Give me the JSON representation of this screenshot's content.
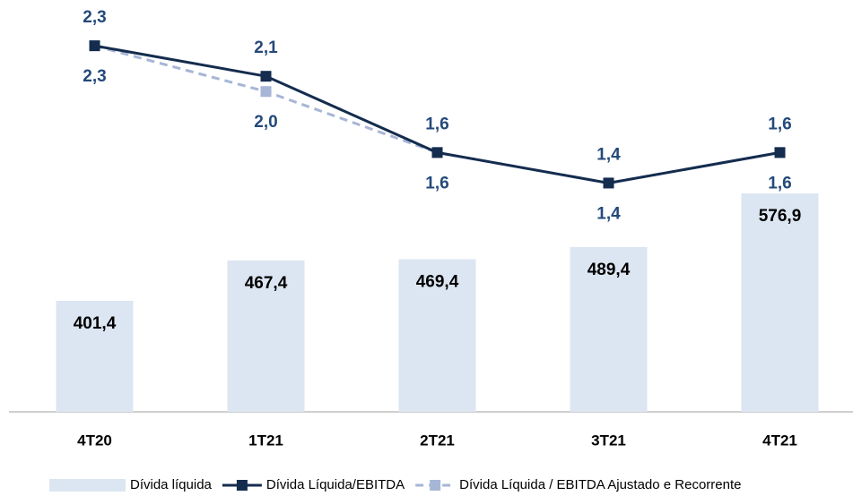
{
  "chart_data": {
    "type": "bar_line",
    "categories": [
      "4T20",
      "1T21",
      "2T21",
      "3T21",
      "4T21"
    ],
    "ylim": [
      220,
      893
    ],
    "y2lim": [
      -0.1,
      2.6
    ],
    "series": [
      {
        "name": "Dívida líquida",
        "type": "bar",
        "color": "#dce6f2",
        "values": [
          401.4,
          467.4,
          469.4,
          489.4,
          576.9
        ],
        "value_labels": [
          "401,4",
          "467,4",
          "469,4",
          "489,4",
          "576,9"
        ]
      },
      {
        "name": "Dívida Líquida/EBITDA",
        "type": "line",
        "axis": "y2",
        "color": "#142c4e",
        "dashed": false,
        "values": [
          2.3,
          2.1,
          1.6,
          1.4,
          1.6
        ],
        "value_labels": [
          "2,3",
          "2,1",
          "1,6",
          "1,4",
          "1,6"
        ]
      },
      {
        "name": "Dívida Líquida / EBITDA Ajustado e Recorrente",
        "type": "line",
        "axis": "y2",
        "color": "#a7b6d6",
        "dashed": true,
        "values": [
          2.3,
          2.0,
          1.6,
          1.4,
          1.6
        ],
        "value_labels": [
          "2,3",
          "2,0",
          "1,6",
          "1,4",
          "1,6"
        ]
      }
    ]
  }
}
